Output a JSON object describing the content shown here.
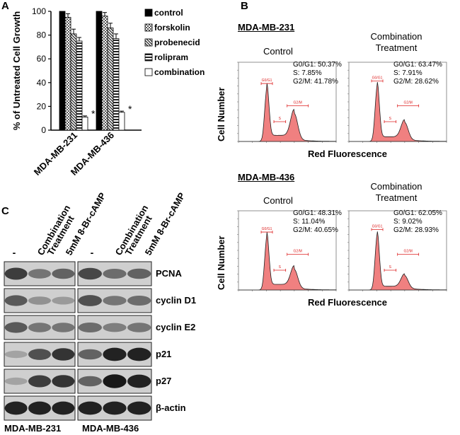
{
  "panel_a": {
    "letter": "A",
    "chart_data": {
      "type": "bar",
      "ylabel": "% of Untreated Cell Growth",
      "ylim": [
        0,
        100
      ],
      "yticks": [
        0,
        20,
        40,
        60,
        80,
        100
      ],
      "grid": false,
      "legend_position": "right",
      "categories": [
        "MDA-MB-231",
        "MDA-MB-436"
      ],
      "series": [
        {
          "name": "control",
          "values": [
            100,
            100
          ],
          "errors": [
            0,
            0
          ],
          "fill": "#000000",
          "pattern": "solid"
        },
        {
          "name": "forskolin",
          "values": [
            95,
            96
          ],
          "errors": [
            3,
            3
          ],
          "fill": "#ffffff",
          "pattern": "check"
        },
        {
          "name": "probenecid",
          "values": [
            81,
            86
          ],
          "errors": [
            4,
            4
          ],
          "fill": "#ffffff",
          "pattern": "diag"
        },
        {
          "name": "rolipram",
          "values": [
            75,
            77
          ],
          "errors": [
            3,
            4
          ],
          "fill": "#ffffff",
          "pattern": "horiz"
        },
        {
          "name": "combination",
          "values": [
            11,
            15
          ],
          "errors": [
            1,
            1
          ],
          "fill": "#ffffff",
          "pattern": "none"
        }
      ],
      "annotations": [
        "*",
        "*"
      ]
    }
  },
  "panel_b": {
    "letter": "B",
    "ylabel": "Cell Number",
    "xlabel": "Red Fluorescence",
    "cell_lines": [
      {
        "name": "MDA-MB-231",
        "histograms": [
          {
            "title": "Control",
            "g0g1": "G0/G1: 50.37%",
            "s": "S: 7.85%",
            "g2m": "G2/M: 41.78%"
          },
          {
            "title": "Combination\nTreatment",
            "g0g1": "G0/G1: 63.47%",
            "s": "S: 7.91%",
            "g2m": "G2/M: 28.62%"
          }
        ]
      },
      {
        "name": "MDA-MB-436",
        "histograms": [
          {
            "title": "Control",
            "g0g1": "G0/G1: 48.31%",
            "s": "S: 11.04%",
            "g2m": "G2/M: 40.65%"
          },
          {
            "title": "Combination\nTreatment",
            "g0g1": "G0/G1: 62.05%",
            "s": "S: 9.02%",
            "g2m": "G2/M: 28.93%"
          }
        ]
      }
    ],
    "gate_labels": [
      "G0/G1",
      "S",
      "G2/M"
    ]
  },
  "panel_c": {
    "letter": "C",
    "lane_labels": [
      "-",
      "Combination Treatment",
      "5mM 8-Br-cAMP"
    ],
    "proteins": [
      "PCNA",
      "cyclin D1",
      "cyclin E2",
      "p21",
      "p27",
      "β-actin"
    ],
    "cell_lines": [
      "MDA-MB-231",
      "MDA-MB-436"
    ],
    "band_intensity": {
      "MDA-MB-231": [
        [
          0.75,
          0.45,
          0.55
        ],
        [
          0.6,
          0.3,
          0.25
        ],
        [
          0.6,
          0.45,
          0.45
        ],
        [
          0.2,
          0.65,
          0.8
        ],
        [
          0.2,
          0.75,
          0.8
        ],
        [
          0.9,
          0.9,
          0.9
        ]
      ],
      "MDA-MB-436": [
        [
          0.7,
          0.5,
          0.55
        ],
        [
          0.65,
          0.45,
          0.5
        ],
        [
          0.5,
          0.4,
          0.45
        ],
        [
          0.55,
          0.9,
          0.9
        ],
        [
          0.55,
          0.95,
          0.9
        ],
        [
          0.9,
          0.9,
          0.9
        ]
      ]
    }
  }
}
